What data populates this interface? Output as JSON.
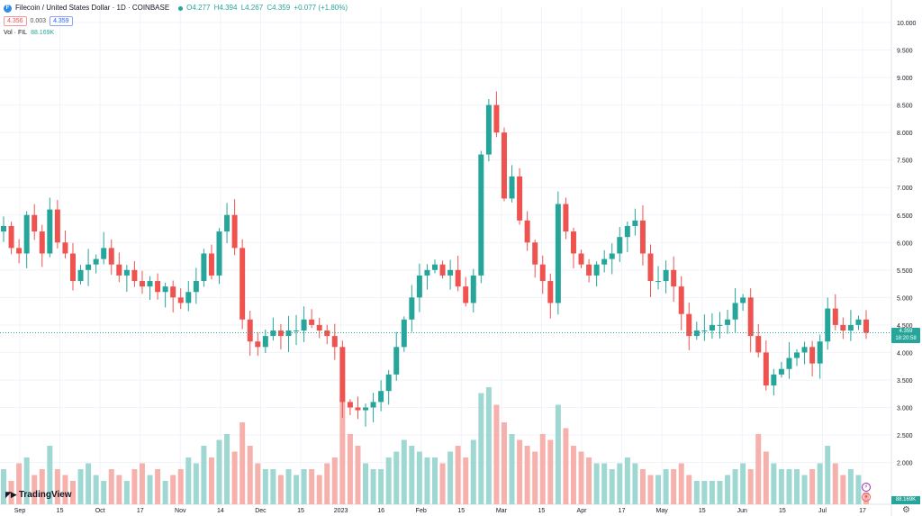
{
  "header": {
    "symbol": "Filecoin / United States Dollar · 1D · COINBASE",
    "coin_icon": "F",
    "ohlc": [
      "O4.277",
      "H4.394",
      "L4.267",
      "C4.359",
      "+0.077 (+1.80%)"
    ],
    "sell": "4.356",
    "spread": "0.003",
    "buy": "4.359",
    "volume_label": "Vol · FIL",
    "volume_value": "88.169K"
  },
  "price_tag": {
    "price": "4.359",
    "countdown": "18:20:58"
  },
  "volume_tag": "88.169K",
  "logo_text": "TradingView",
  "colors": {
    "up": "#26a69a",
    "down": "#ef5350",
    "vol_up": "#9fd8d2",
    "vol_down": "#f7b1ad"
  },
  "chart_data": {
    "type": "candlestick",
    "x_ticks": [
      "Sep",
      "15",
      "Oct",
      "17",
      "Nov",
      "14",
      "Dec",
      "15",
      "2023",
      "16",
      "Feb",
      "15",
      "Mar",
      "15",
      "Apr",
      "17",
      "May",
      "15",
      "Jun",
      "15",
      "Jul",
      "17"
    ],
    "y_ticks": [
      "10.000",
      "9.500",
      "9.000",
      "8.500",
      "8.000",
      "7.500",
      "7.000",
      "6.500",
      "6.000",
      "5.500",
      "5.000",
      "4.500",
      "4.000",
      "3.500",
      "3.000",
      "2.500",
      "2.000"
    ],
    "ylim": [
      1.6,
      10.0
    ],
    "last_price": 4.359,
    "close_path": [
      6.3,
      5.9,
      5.8,
      6.5,
      6.2,
      5.8,
      6.6,
      6.0,
      5.8,
      5.3,
      5.5,
      5.6,
      5.7,
      5.9,
      5.6,
      5.4,
      5.5,
      5.3,
      5.2,
      5.3,
      5.1,
      5.2,
      5.0,
      4.9,
      5.1,
      5.3,
      5.8,
      5.4,
      6.2,
      6.5,
      5.9,
      4.6,
      4.2,
      4.1,
      4.3,
      4.4,
      4.3,
      4.4,
      4.4,
      4.6,
      4.5,
      4.4,
      4.3,
      4.1,
      3.1,
      3.0,
      2.95,
      3.0,
      3.1,
      3.3,
      3.6,
      4.1,
      4.6,
      5.0,
      5.4,
      5.5,
      5.6,
      5.4,
      5.5,
      5.2,
      4.9,
      5.4,
      7.6,
      8.5,
      8.0,
      6.8,
      7.2,
      6.4,
      6.0,
      5.6,
      5.3,
      4.9,
      6.7,
      6.2,
      5.8,
      5.6,
      5.4,
      5.6,
      5.7,
      5.8,
      6.1,
      6.3,
      6.4,
      5.8,
      5.3,
      5.3,
      5.5,
      5.2,
      4.7,
      4.3,
      4.4,
      4.4,
      4.5,
      4.5,
      4.6,
      4.9,
      5.0,
      4.3,
      4.0,
      3.4,
      3.6,
      3.7,
      3.9,
      4.0,
      4.1,
      3.8,
      4.2,
      4.8,
      4.5,
      4.4,
      4.5,
      4.6,
      4.36
    ],
    "volume_relative": [
      0.3,
      0.2,
      0.35,
      0.4,
      0.25,
      0.3,
      0.5,
      0.3,
      0.25,
      0.2,
      0.3,
      0.35,
      0.25,
      0.2,
      0.3,
      0.25,
      0.2,
      0.3,
      0.35,
      0.25,
      0.3,
      0.2,
      0.25,
      0.3,
      0.4,
      0.35,
      0.5,
      0.4,
      0.55,
      0.6,
      0.45,
      0.7,
      0.5,
      0.35,
      0.3,
      0.3,
      0.25,
      0.3,
      0.25,
      0.3,
      0.3,
      0.25,
      0.35,
      0.4,
      0.9,
      0.6,
      0.5,
      0.35,
      0.3,
      0.3,
      0.4,
      0.45,
      0.55,
      0.5,
      0.45,
      0.4,
      0.4,
      0.35,
      0.45,
      0.5,
      0.4,
      0.55,
      0.95,
      1.0,
      0.85,
      0.7,
      0.6,
      0.55,
      0.5,
      0.45,
      0.6,
      0.55,
      0.85,
      0.65,
      0.5,
      0.45,
      0.4,
      0.35,
      0.35,
      0.3,
      0.35,
      0.4,
      0.35,
      0.3,
      0.25,
      0.25,
      0.3,
      0.3,
      0.35,
      0.25,
      0.2,
      0.2,
      0.2,
      0.2,
      0.25,
      0.3,
      0.35,
      0.3,
      0.6,
      0.45,
      0.35,
      0.3,
      0.3,
      0.3,
      0.25,
      0.3,
      0.35,
      0.5,
      0.35,
      0.25,
      0.3,
      0.25,
      0.1
    ]
  }
}
